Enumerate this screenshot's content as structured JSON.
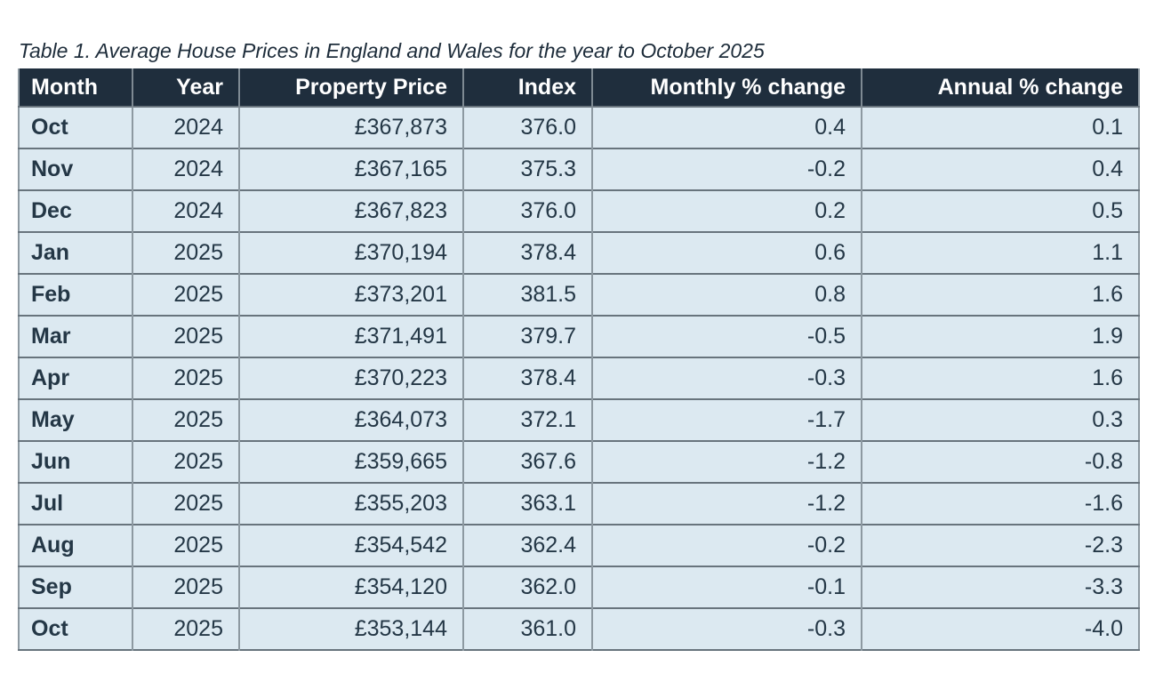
{
  "title": "Table 1. Average House Prices in England and Wales for the year to October 2025",
  "table": {
    "columns": [
      "Month",
      "Year",
      "Property Price",
      "Index",
      "Monthly % change",
      "Annual % change"
    ],
    "rows": [
      [
        "Oct",
        "2024",
        "£367,873",
        "376.0",
        "0.4",
        "0.1"
      ],
      [
        "Nov",
        "2024",
        "£367,165",
        "375.3",
        "-0.2",
        "0.4"
      ],
      [
        "Dec",
        "2024",
        "£367,823",
        "376.0",
        "0.2",
        "0.5"
      ],
      [
        "Jan",
        "2025",
        "£370,194",
        "378.4",
        "0.6",
        "1.1"
      ],
      [
        "Feb",
        "2025",
        "£373,201",
        "381.5",
        "0.8",
        "1.6"
      ],
      [
        "Mar",
        "2025",
        "£371,491",
        "379.7",
        "-0.5",
        "1.9"
      ],
      [
        "Apr",
        "2025",
        "£370,223",
        "378.4",
        "-0.3",
        "1.6"
      ],
      [
        "May",
        "2025",
        "£364,073",
        "372.1",
        "-1.7",
        "0.3"
      ],
      [
        "Jun",
        "2025",
        "£359,665",
        "367.6",
        "-1.2",
        "-0.8"
      ],
      [
        "Jul",
        "2025",
        "£355,203",
        "363.1",
        "-1.2",
        "-1.6"
      ],
      [
        "Aug",
        "2025",
        "£354,542",
        "362.4",
        "-0.2",
        "-2.3"
      ],
      [
        "Sep",
        "2025",
        "£354,120",
        "362.0",
        "-0.1",
        "-3.3"
      ],
      [
        "Oct",
        "2025",
        "£353,144",
        "361.0",
        "-0.3",
        "-4.0"
      ]
    ]
  },
  "colors": {
    "header_bg": "#1f2e3d",
    "header_text": "#ffffff",
    "row_bg": "#dce9f1",
    "body_text": "#243746",
    "border_horizontal": "#68747d",
    "border_vertical": "#8d99a1",
    "page_bg": "#ffffff"
  }
}
